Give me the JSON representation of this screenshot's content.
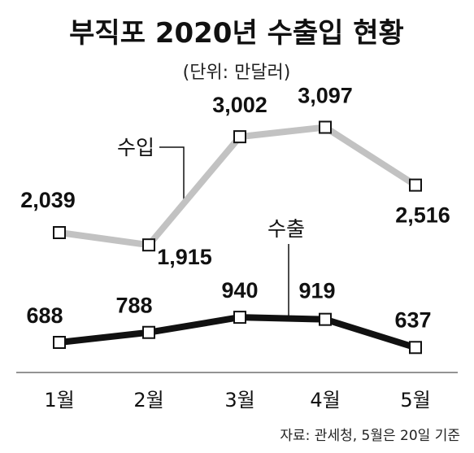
{
  "chart_data": {
    "type": "line",
    "title": "부직포 2020년 수출입 현황",
    "subtitle": "(단위: 만달러)",
    "categories": [
      "1월",
      "2월",
      "3월",
      "4월",
      "5월"
    ],
    "series": [
      {
        "name": "수입",
        "values": [
          2039,
          1915,
          3002,
          3097,
          2516
        ],
        "labels": [
          "2,039",
          "1,915",
          "3,002",
          "3,097",
          "2,516"
        ],
        "color": "#c2c2c2"
      },
      {
        "name": "수출",
        "values": [
          688,
          788,
          940,
          919,
          637
        ],
        "labels": [
          "688",
          "788",
          "940",
          "919",
          "637"
        ],
        "color": "#111111"
      }
    ],
    "source": "자료: 관세청, 5월은 20일 기준",
    "grid": false,
    "legend": "none"
  }
}
